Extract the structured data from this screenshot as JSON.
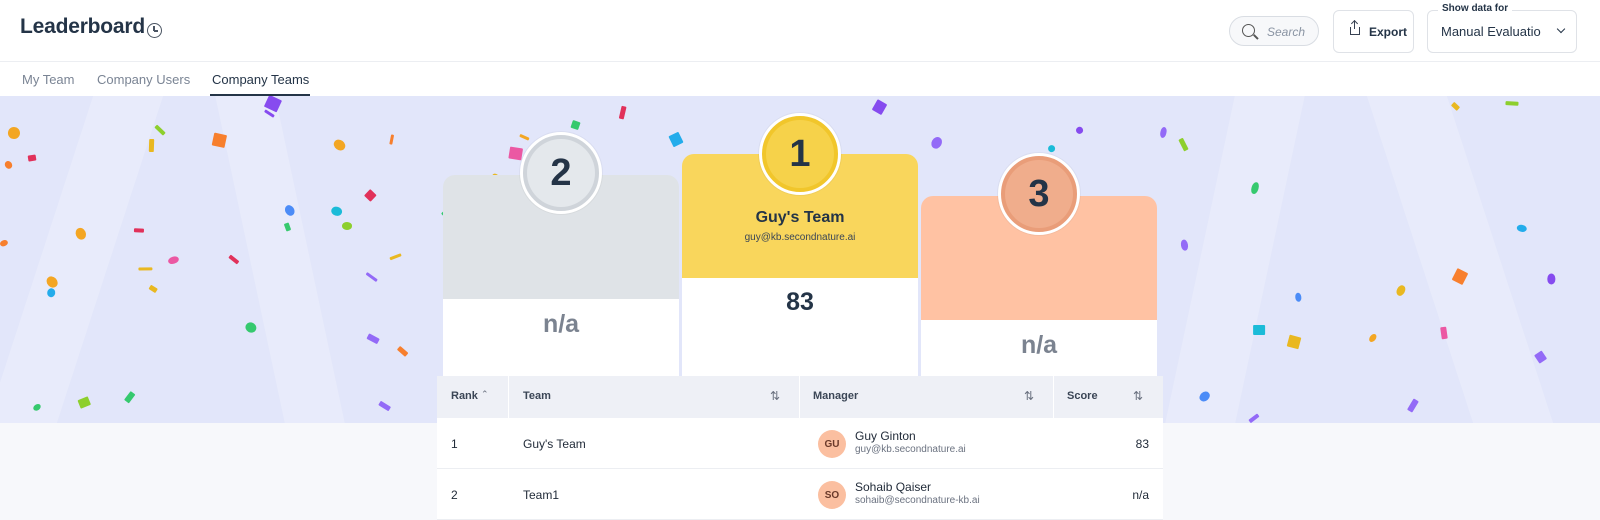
{
  "header": {
    "title": "Leaderboard",
    "search_placeholder": "Search",
    "export_label": "Export",
    "show_data_label": "Show data for",
    "show_data_value": "Manual Evaluation"
  },
  "tabs": [
    {
      "label": "My Team",
      "active": false
    },
    {
      "label": "Company Users",
      "active": false
    },
    {
      "label": "Company Teams",
      "active": true
    }
  ],
  "podium": [
    {
      "rank": "2",
      "name": "",
      "email": "",
      "score": "n/a",
      "color": "#dfe3e7",
      "medal": "#cfd4da"
    },
    {
      "rank": "1",
      "name": "Guy's Team",
      "email": "guy@kb.secondnature.ai",
      "score": "83",
      "color": "#f9d65c",
      "medal": "#f1c62b"
    },
    {
      "rank": "3",
      "name": "",
      "email": "",
      "score": "n/a",
      "color": "#ffc2a3",
      "medal": "#e99d79"
    }
  ],
  "table": {
    "columns": [
      "Rank",
      "Team",
      "Manager",
      "Score"
    ],
    "rows": [
      {
        "rank": "1",
        "team": "Guy's Team",
        "initials": "GU",
        "manager": "Guy Ginton",
        "email": "guy@kb.secondnature.ai",
        "score": "83"
      },
      {
        "rank": "2",
        "team": "Team1",
        "initials": "SO",
        "manager": "Sohaib Qaiser",
        "email": "sohaib@secondnature-kb.ai",
        "score": "n/a"
      }
    ]
  },
  "colors": {
    "banner_bg": "#e2e6fa",
    "text_dark": "#243447"
  }
}
